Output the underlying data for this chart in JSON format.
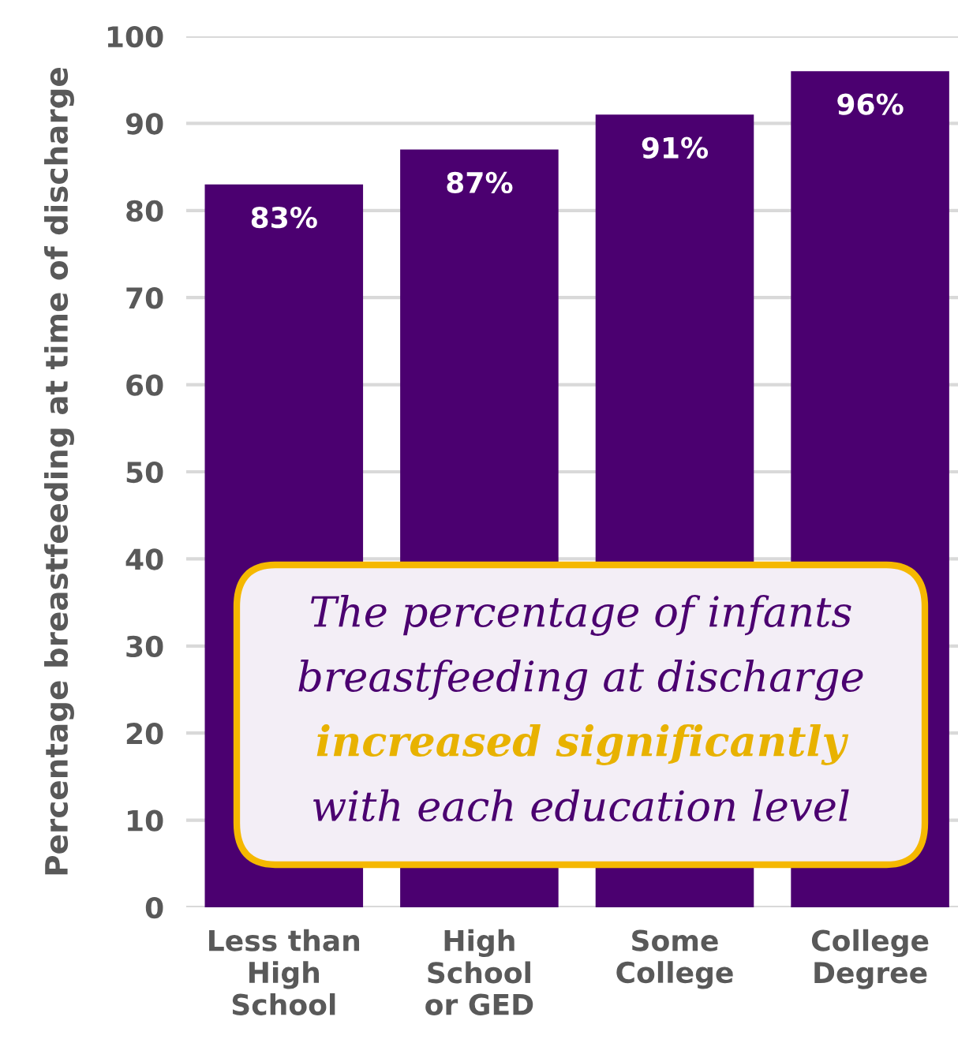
{
  "chart_data": {
    "type": "bar",
    "ylabel": "Percentage breastfeeding at time of discharge",
    "categories": [
      "Less than\nHigh\nSchool",
      "High\nSchool\nor GED",
      "Some\nCollege",
      "College\nDegree"
    ],
    "values": [
      83,
      87,
      91,
      96
    ],
    "color": "#4b0070",
    "value_labels": [
      "83%",
      "87%",
      "91%",
      "96%"
    ],
    "ylim": [
      0,
      100
    ],
    "yticks": [
      0,
      10,
      20,
      30,
      40,
      50,
      60,
      70,
      80,
      90,
      100
    ],
    "grid": "y",
    "annotations": [
      "The percentage of infants",
      "breastfeeding at discharge",
      "increased significantly",
      "with each education level"
    ]
  }
}
